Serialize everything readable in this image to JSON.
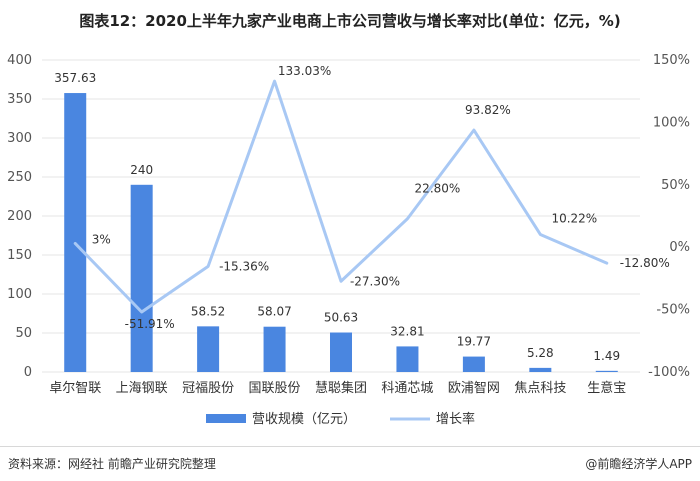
{
  "title": "图表12：2020上半年九家产业电商上市公司营收与增长率对比(单位：亿元，%)",
  "footer": {
    "source": "资料来源：网经社 前瞻产业研究院整理",
    "brand": "@前瞻经济学人APP"
  },
  "chart_data": {
    "type": "bar",
    "categories": [
      "卓尔智联",
      "上海钢联",
      "冠福股份",
      "国联股份",
      "慧聪集团",
      "科通芯城",
      "欧浦智网",
      "焦点科技",
      "生意宝"
    ],
    "series": [
      {
        "name": "营收规模（亿元）",
        "type": "bar",
        "axis": "left",
        "color": "#4a86e0",
        "values": [
          357.63,
          240,
          58.52,
          58.07,
          50.63,
          32.81,
          19.77,
          5.28,
          1.49
        ],
        "labels": [
          "357.63",
          "240",
          "58.52",
          "58.07",
          "50.63",
          "32.81",
          "19.77",
          "5.28",
          "1.49"
        ]
      },
      {
        "name": "增长率",
        "type": "line",
        "axis": "right",
        "color": "#a8c8f4",
        "values": [
          3,
          -51.91,
          -15.36,
          133.03,
          -27.3,
          22.8,
          93.82,
          10.22,
          -12.8
        ],
        "labels": [
          "3%",
          "-51.91%",
          "-15.36%",
          "133.03%",
          "-27.30%",
          "22.80%",
          "93.82%",
          "10.22%",
          "-12.80%"
        ]
      }
    ],
    "y_left": {
      "lim": [
        0,
        400
      ],
      "ticks": [
        "0",
        "50",
        "100",
        "150",
        "200",
        "250",
        "300",
        "350",
        "400"
      ]
    },
    "y_right": {
      "lim": [
        -100,
        150
      ],
      "ticks": [
        "-100%",
        "-50%",
        "0%",
        "50%",
        "100%",
        "150%"
      ]
    },
    "grid": true,
    "legend_position": "bottom"
  }
}
